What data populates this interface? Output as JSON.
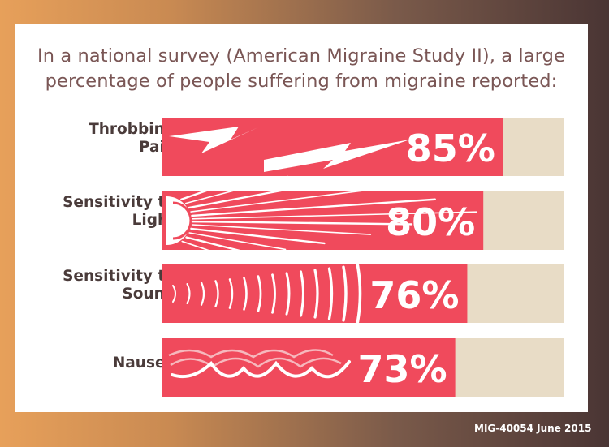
{
  "title_lines": [
    "In a national survey (American Migraine Study II), a large",
    "percentage of people suffering from migraine reported:"
  ],
  "footer": "MIG-40054 June 2015",
  "colors": {
    "bar": "#f04a5c",
    "track": "#e8dcc6",
    "frame_left": "#e7a05a",
    "frame_right": "#4a3534",
    "title": "#7a5655",
    "label": "#4a3b3a"
  },
  "chart_data": {
    "type": "bar",
    "orientation": "horizontal",
    "title": "In a national survey (American Migraine Study II), a large percentage of people suffering from migraine reported:",
    "categories": [
      [
        "Throbbing",
        "Pain"
      ],
      [
        "Sensitivity to",
        "Light"
      ],
      [
        "Sensitivity to",
        "Sound"
      ],
      [
        "Nausea"
      ]
    ],
    "values": [
      85,
      80,
      76,
      73
    ],
    "value_labels": [
      "85%",
      "80%",
      "76%",
      "73%"
    ],
    "bar_icons": [
      "lightning-bolts",
      "sun-rays",
      "sound-waves",
      "waves"
    ],
    "xlim": [
      0,
      100
    ],
    "grid": false,
    "legend": "none"
  }
}
